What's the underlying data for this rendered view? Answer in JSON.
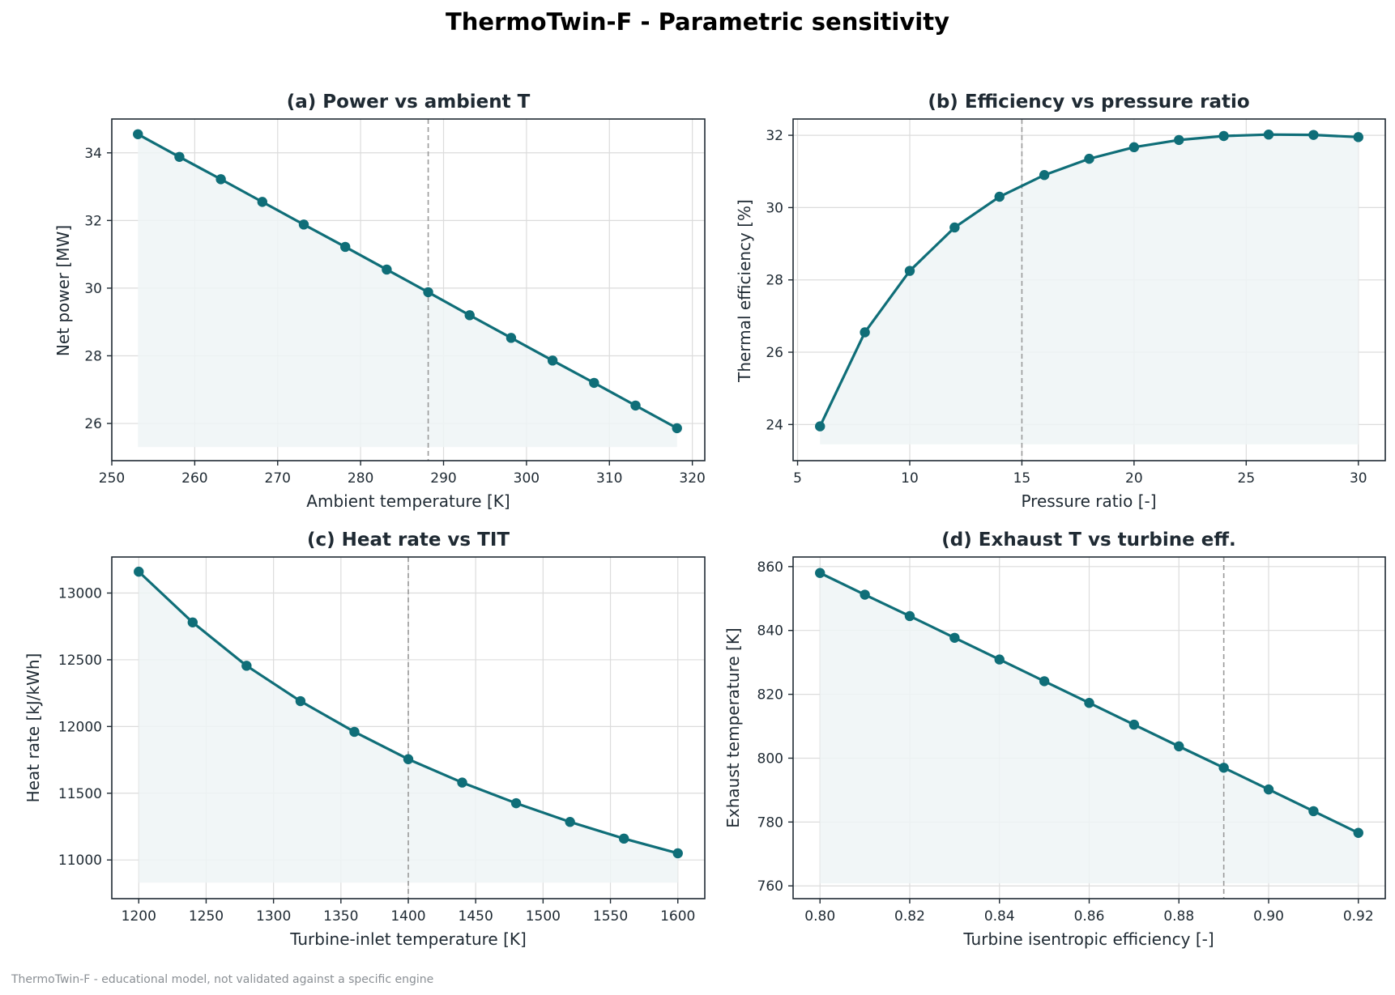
{
  "suptitle": "ThermoTwin-F  -  Parametric sensitivity",
  "footer": "ThermoTwin-F - educational model, not validated against a specific engine",
  "colors": {
    "line": "#0f6e78",
    "fill": "#eef4f6",
    "grid": "#dcdcdc",
    "ref": "#9a9a9a",
    "axis": "#1f2a33"
  },
  "chart_data": [
    {
      "type": "line",
      "title": "(a) Power vs ambient T",
      "xlabel": "Ambient temperature [K]",
      "ylabel": "Net power [MW]",
      "xlim": [
        250,
        321.5
      ],
      "ylim": [
        24.9,
        35.0
      ],
      "xticks": [
        250,
        260,
        270,
        280,
        290,
        300,
        310,
        320
      ],
      "yticks": [
        26,
        28,
        30,
        32,
        34
      ],
      "xtick_labels": [
        "250",
        "260",
        "270",
        "280",
        "290",
        "300",
        "310",
        "320"
      ],
      "ytick_labels": [
        "26",
        "28",
        "30",
        "32",
        "34"
      ],
      "reference_x": 288.15,
      "fill_base": 25.3,
      "x": [
        253.15,
        258.15,
        263.15,
        268.15,
        273.15,
        278.15,
        283.15,
        288.15,
        293.15,
        298.15,
        303.15,
        308.15,
        313.15,
        318.15
      ],
      "y": [
        34.55,
        33.88,
        33.22,
        32.55,
        31.88,
        31.22,
        30.55,
        29.88,
        29.2,
        28.53,
        27.86,
        27.2,
        26.53,
        25.86
      ]
    },
    {
      "type": "line",
      "title": "(b) Efficiency vs pressure ratio",
      "xlabel": "Pressure ratio [-]",
      "ylabel": "Thermal efficiency [%]",
      "xlim": [
        4.8,
        31.2
      ],
      "ylim": [
        23.0,
        32.45
      ],
      "xticks": [
        5,
        10,
        15,
        20,
        25,
        30
      ],
      "yticks": [
        24,
        26,
        28,
        30,
        32
      ],
      "xtick_labels": [
        "5",
        "10",
        "15",
        "20",
        "25",
        "30"
      ],
      "ytick_labels": [
        "24",
        "26",
        "28",
        "30",
        "32"
      ],
      "reference_x": 15,
      "fill_base": 23.45,
      "x": [
        6,
        8,
        10,
        12,
        14,
        16,
        18,
        20,
        22,
        24,
        26,
        28,
        30
      ],
      "y": [
        23.95,
        26.55,
        28.25,
        29.45,
        30.3,
        30.9,
        31.35,
        31.67,
        31.87,
        31.98,
        32.02,
        32.01,
        31.95
      ]
    },
    {
      "type": "line",
      "title": "(c) Heat rate vs TIT",
      "xlabel": "Turbine-inlet temperature [K]",
      "ylabel": "Heat rate [kJ/kWh]",
      "xlim": [
        1180,
        1620
      ],
      "ylim": [
        10710,
        13270
      ],
      "xticks": [
        1200,
        1250,
        1300,
        1350,
        1400,
        1450,
        1500,
        1550,
        1600
      ],
      "yticks": [
        11000,
        11500,
        12000,
        12500,
        13000
      ],
      "xtick_labels": [
        "1200",
        "1250",
        "1300",
        "1350",
        "1400",
        "1450",
        "1500",
        "1550",
        "1600"
      ],
      "ytick_labels": [
        "11000",
        "11500",
        "12000",
        "12500",
        "13000"
      ],
      "reference_x": 1400,
      "fill_base": 10830,
      "x": [
        1200,
        1240,
        1280,
        1320,
        1360,
        1400,
        1440,
        1480,
        1520,
        1560,
        1600
      ],
      "y": [
        13160,
        12780,
        12455,
        12190,
        11960,
        11755,
        11580,
        11425,
        11285,
        11160,
        11050
      ]
    },
    {
      "type": "line",
      "title": "(d) Exhaust T vs turbine eff.",
      "xlabel": "Turbine isentropic efficiency [-]",
      "ylabel": "Exhaust temperature [K]",
      "xlim": [
        0.794,
        0.926
      ],
      "ylim": [
        756,
        863
      ],
      "xticks": [
        0.8,
        0.82,
        0.84,
        0.86,
        0.88,
        0.9,
        0.92
      ],
      "yticks": [
        760,
        780,
        800,
        820,
        840,
        860
      ],
      "xtick_labels": [
        "0.80",
        "0.82",
        "0.84",
        "0.86",
        "0.88",
        "0.90",
        "0.92"
      ],
      "ytick_labels": [
        "760",
        "780",
        "800",
        "820",
        "840",
        "860"
      ],
      "reference_x": 0.89,
      "fill_base": 760.8,
      "x": [
        0.8,
        0.81,
        0.82,
        0.83,
        0.84,
        0.85,
        0.86,
        0.87,
        0.88,
        0.89,
        0.9,
        0.91,
        0.92
      ],
      "y": [
        858.0,
        851.2,
        844.5,
        837.7,
        830.9,
        824.1,
        817.3,
        810.5,
        803.7,
        797.0,
        790.2,
        783.4,
        776.6
      ]
    }
  ]
}
